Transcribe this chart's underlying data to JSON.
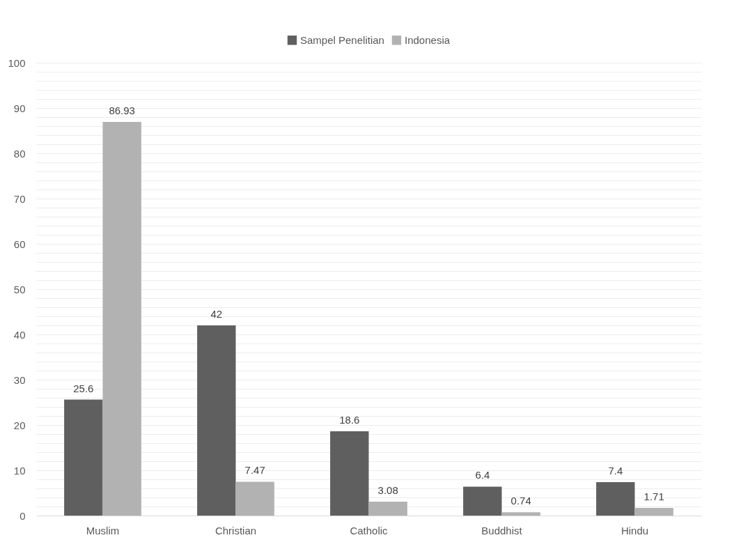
{
  "chart_data": {
    "type": "bar",
    "categories": [
      "Muslim",
      "Christian",
      "Catholic",
      "Buddhist",
      "Hindu"
    ],
    "series": [
      {
        "name": "Sampel Penelitian",
        "color": "#5f5f5f",
        "values": [
          25.6,
          42,
          18.6,
          6.4,
          7.4
        ]
      },
      {
        "name": "Indonesia",
        "color": "#b2b2b2",
        "values": [
          86.93,
          7.47,
          3.08,
          0.74,
          1.71
        ]
      }
    ],
    "ylim": [
      0,
      100
    ],
    "yticks": [
      0,
      {
        "value": 2,
        "label": null
      },
      {
        "value": 4,
        "label": null
      },
      {
        "value": 6,
        "label": null
      },
      {
        "value": 8,
        "label": null
      },
      10,
      {
        "value": 12,
        "label": null
      },
      {
        "value": 14,
        "label": null
      },
      {
        "value": 16,
        "label": null
      },
      {
        "value": 18,
        "label": null
      },
      20,
      {
        "value": 22,
        "label": null
      },
      {
        "value": 24,
        "label": null
      },
      {
        "value": 26,
        "label": null
      },
      {
        "value": 28,
        "label": null
      },
      30,
      {
        "value": 32,
        "label": null
      },
      {
        "value": 34,
        "label": null
      },
      {
        "value": 36,
        "label": null
      },
      {
        "value": 38,
        "label": null
      },
      40,
      {
        "value": 42,
        "label": null
      },
      {
        "value": 44,
        "label": null
      },
      {
        "value": 46,
        "label": null
      },
      {
        "value": 48,
        "label": null
      },
      50,
      {
        "value": 52,
        "label": null
      },
      {
        "value": 54,
        "label": null
      },
      {
        "value": 56,
        "label": null
      },
      {
        "value": 58,
        "label": null
      },
      60,
      {
        "value": 62,
        "label": null
      },
      {
        "value": 64,
        "label": null
      },
      {
        "value": 66,
        "label": null
      },
      {
        "value": 68,
        "label": null
      },
      70,
      {
        "value": 72,
        "label": null
      },
      {
        "value": 74,
        "label": null
      },
      {
        "value": 76,
        "label": null
      },
      {
        "value": 78,
        "label": null
      },
      80,
      {
        "value": 82,
        "label": null
      },
      {
        "value": 84,
        "label": null
      },
      {
        "value": 86,
        "label": null
      },
      {
        "value": 88,
        "label": null
      },
      90,
      {
        "value": 92,
        "label": null
      },
      {
        "value": 94,
        "label": null
      },
      {
        "value": 96,
        "label": null
      },
      {
        "value": 98,
        "label": null
      },
      100
    ],
    "grid": true,
    "legend": "top",
    "data_labels": true
  }
}
